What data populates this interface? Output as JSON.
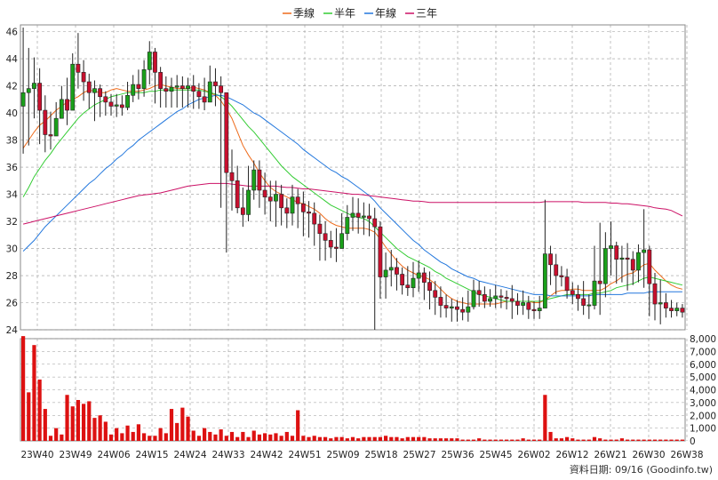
{
  "legend": [
    {
      "label": "季線",
      "color": "#ee6a1a"
    },
    {
      "label": "半年",
      "color": "#33cc33"
    },
    {
      "label": "年線",
      "color": "#2277dd"
    },
    {
      "label": "三年",
      "color": "#cc1166"
    }
  ],
  "footer": "資料日期: 09/16  (Goodinfo.tw)",
  "chart_data": [
    {
      "type": "candlestick",
      "title": "",
      "x_ticks": [
        "23W40",
        "23W49",
        "24W06",
        "24W15",
        "24W24",
        "24W33",
        "24W42",
        "24W51",
        "25W09",
        "25W18",
        "25W27",
        "25W36",
        "25W45",
        "26W02",
        "26W12",
        "26W21",
        "26W30",
        "26W38"
      ],
      "y_ticks": [
        "46",
        "44",
        "42",
        "40",
        "38",
        "36",
        "34",
        "32",
        "30",
        "28",
        "26",
        "24"
      ],
      "ylim": [
        24,
        46.5
      ],
      "grid": true,
      "up_color": "#1aa01a",
      "down_color": "#c8102e",
      "weekly_close": [
        41.5,
        41.8,
        42.2,
        40.2,
        38.4,
        38.3,
        39.6,
        41.0,
        40.2,
        43.6,
        43.0,
        42.3,
        41.5,
        41.8,
        41.2,
        40.8,
        40.5,
        40.6,
        40.4,
        41.3,
        42.1,
        41.8,
        43.2,
        44.5,
        43.0,
        41.8,
        41.6,
        41.9,
        42.0,
        41.8,
        42.0,
        41.6,
        41.2,
        40.8,
        42.3,
        42.0,
        41.5,
        35.6,
        35.0,
        33.0,
        32.5,
        34.3,
        35.8,
        34.3,
        33.8,
        33.5,
        34.0,
        33.0,
        32.6,
        33.8,
        33.3,
        32.7,
        32.6,
        31.8,
        31.1,
        30.6,
        30.1,
        30.0,
        31.1,
        32.3,
        32.6,
        32.3,
        32.4,
        32.2,
        31.6,
        27.9,
        28.4,
        28.6,
        28.1,
        27.3,
        27.1,
        27.8,
        28.2,
        27.5,
        26.9,
        26.4,
        25.8,
        25.6,
        25.7,
        25.5,
        25.3,
        25.7,
        26.9,
        26.6,
        26.1,
        26.3,
        26.5,
        26.4,
        26.3,
        26.1,
        25.8,
        26.0,
        25.5,
        25.4,
        25.6,
        29.6,
        28.8,
        28.0,
        27.9,
        26.9,
        26.6,
        26.3,
        25.8,
        25.8,
        27.6,
        27.4,
        30.0,
        30.2,
        29.2,
        29.3,
        29.2,
        28.4,
        29.7,
        29.9,
        27.4,
        25.9,
        26.0,
        25.6,
        25.4,
        25.6,
        25.3
      ],
      "weekly_high": [
        46.3,
        44.8,
        44.1,
        43.3,
        41.3,
        40.1,
        40.8,
        42.0,
        42.6,
        44.4,
        45.9,
        43.9,
        42.9,
        42.4,
        42.1,
        41.6,
        41.4,
        41.4,
        41.3,
        42.3,
        42.8,
        43.2,
        43.9,
        45.3,
        44.8,
        43.4,
        42.7,
        42.6,
        42.8,
        42.7,
        42.6,
        42.8,
        42.2,
        42.6,
        43.5,
        43.3,
        42.7,
        39.9,
        37.3,
        36.1,
        34.5,
        36.1,
        36.5,
        36.5,
        35.6,
        35.0,
        35.0,
        34.7,
        33.7,
        34.7,
        34.4,
        34.2,
        33.5,
        33.4,
        32.5,
        32.0,
        31.3,
        31.5,
        32.6,
        33.2,
        33.8,
        33.7,
        33.4,
        33.3,
        33.0,
        32.0,
        29.7,
        29.9,
        29.3,
        28.6,
        28.7,
        29.0,
        29.1,
        28.6,
        28.3,
        27.6,
        27.2,
        26.6,
        26.3,
        26.2,
        26.4,
        26.9,
        27.7,
        27.6,
        27.2,
        27.0,
        27.3,
        27.0,
        26.9,
        27.3,
        26.7,
        26.9,
        26.5,
        26.1,
        26.5,
        33.6,
        30.2,
        29.6,
        28.7,
        28.5,
        27.5,
        27.3,
        27.6,
        26.6,
        30.2,
        31.9,
        31.2,
        32.0,
        30.5,
        30.2,
        30.4,
        29.8,
        30.3,
        32.9,
        30.2,
        28.2,
        27.7,
        26.7,
        26.2,
        26.0,
        25.9
      ],
      "weekly_low": [
        37.0,
        37.6,
        39.6,
        37.7,
        37.1,
        37.3,
        38.3,
        39.7,
        39.1,
        40.6,
        41.8,
        40.9,
        40.3,
        39.4,
        39.7,
        39.8,
        39.8,
        39.7,
        39.8,
        40.2,
        40.8,
        41.0,
        41.2,
        42.1,
        40.7,
        40.4,
        40.4,
        40.4,
        40.4,
        40.4,
        40.4,
        40.3,
        40.3,
        40.2,
        40.9,
        40.5,
        33.0,
        29.7,
        32.8,
        32.6,
        31.6,
        32.0,
        33.6,
        33.0,
        32.5,
        32.0,
        31.6,
        31.7,
        31.5,
        31.7,
        31.5,
        30.9,
        30.8,
        30.2,
        29.1,
        29.1,
        29.3,
        29.0,
        30.2,
        30.6,
        31.3,
        31.1,
        31.0,
        30.9,
        24.0,
        26.3,
        26.3,
        27.2,
        26.9,
        26.6,
        26.5,
        26.4,
        26.8,
        26.2,
        25.5,
        25.1,
        24.9,
        24.9,
        24.6,
        24.6,
        24.7,
        24.6,
        25.5,
        25.7,
        25.6,
        25.7,
        25.6,
        25.6,
        25.5,
        24.8,
        25.1,
        25.1,
        24.8,
        24.8,
        24.8,
        25.8,
        27.3,
        26.6,
        27.2,
        26.3,
        25.9,
        25.4,
        25.1,
        24.8,
        25.5,
        25.1,
        26.4,
        28.0,
        27.4,
        27.5,
        26.9,
        27.3,
        27.5,
        27.1,
        25.0,
        24.7,
        24.4,
        24.9,
        24.9,
        25.0,
        24.9
      ],
      "series": [
        {
          "name": "季線",
          "color": "#ee6a1a",
          "values": [
            37.4,
            38.0,
            38.6,
            39.1,
            39.4,
            39.8,
            40.2,
            40.5,
            40.8,
            41.0,
            41.2,
            41.5,
            41.7,
            41.6,
            41.5,
            41.5,
            41.7,
            41.8,
            41.7,
            41.6,
            41.6,
            41.6,
            41.7,
            41.8,
            42.0,
            42.1,
            42.0,
            41.9,
            41.8,
            41.8,
            41.8,
            41.9,
            41.8,
            41.7,
            41.5,
            41.3,
            40.9,
            40.3,
            39.6,
            38.6,
            37.6,
            36.9,
            36.3,
            35.6,
            35.0,
            34.5,
            34.2,
            34.0,
            33.8,
            33.6,
            33.4,
            33.3,
            33.1,
            32.9,
            32.6,
            32.2,
            31.9,
            31.7,
            31.6,
            31.5,
            31.5,
            31.5,
            31.5,
            31.4,
            31.2,
            30.7,
            30.1,
            29.6,
            29.1,
            28.7,
            28.4,
            28.2,
            28.0,
            27.9,
            27.7,
            27.4,
            27.0,
            26.6,
            26.3,
            26.1,
            26.0,
            25.9,
            25.9,
            25.9,
            25.9,
            25.9,
            25.9,
            26.0,
            26.1,
            26.1,
            26.1,
            26.1,
            26.1,
            26.0,
            26.0,
            26.2,
            26.5,
            26.8,
            26.9,
            26.9,
            27.0,
            27.0,
            26.9,
            26.9,
            26.9,
            26.9,
            27.1,
            27.4,
            27.6,
            27.9,
            28.1,
            28.2,
            28.5,
            28.8,
            28.9,
            28.4,
            28.0,
            27.6,
            27.3,
            27.1,
            27.0
          ]
        },
        {
          "name": "半年",
          "color": "#33cc33",
          "values": [
            33.8,
            34.5,
            35.3,
            35.9,
            36.5,
            37.0,
            37.6,
            38.1,
            38.6,
            39.1,
            39.6,
            40.0,
            40.3,
            40.6,
            40.8,
            41.0,
            41.2,
            41.3,
            41.4,
            41.5,
            41.5,
            41.5,
            41.5,
            41.6,
            41.6,
            41.7,
            41.7,
            41.7,
            41.7,
            41.7,
            41.7,
            41.7,
            41.7,
            41.6,
            41.5,
            41.4,
            41.2,
            40.9,
            40.5,
            40.0,
            39.5,
            39.0,
            38.6,
            38.1,
            37.6,
            37.1,
            36.6,
            36.1,
            35.7,
            35.3,
            35.0,
            34.7,
            34.4,
            34.1,
            33.8,
            33.5,
            33.2,
            33.0,
            32.8,
            32.6,
            32.4,
            32.3,
            32.2,
            32.0,
            31.6,
            31.2,
            30.8,
            30.4,
            30.0,
            29.7,
            29.4,
            29.2,
            29.0,
            28.8,
            28.6,
            28.3,
            28.1,
            27.8,
            27.6,
            27.4,
            27.2,
            27.0,
            26.8,
            26.6,
            26.5,
            26.4,
            26.3,
            26.2,
            26.1,
            26.1,
            26.1,
            26.1,
            26.1,
            26.1,
            26.1,
            26.2,
            26.3,
            26.4,
            26.5,
            26.6,
            26.6,
            26.6,
            26.6,
            26.6,
            26.7,
            26.7,
            26.8,
            26.9,
            27.1,
            27.2,
            27.3,
            27.4,
            27.6,
            27.8,
            27.9,
            27.8,
            27.7,
            27.6,
            27.5,
            27.4,
            27.3
          ]
        },
        {
          "name": "年線",
          "color": "#2277dd",
          "values": [
            29.8,
            30.2,
            30.6,
            31.1,
            31.6,
            32.0,
            32.4,
            32.8,
            33.2,
            33.6,
            34.0,
            34.4,
            34.8,
            35.1,
            35.5,
            35.9,
            36.2,
            36.6,
            36.9,
            37.3,
            37.6,
            38.0,
            38.3,
            38.6,
            38.9,
            39.2,
            39.5,
            39.8,
            40.1,
            40.3,
            40.6,
            40.8,
            41.0,
            41.1,
            41.2,
            41.3,
            41.3,
            41.2,
            41.0,
            40.8,
            40.6,
            40.3,
            40.0,
            39.8,
            39.5,
            39.2,
            38.9,
            38.6,
            38.3,
            38.0,
            37.7,
            37.3,
            37.0,
            36.7,
            36.4,
            36.1,
            35.8,
            35.6,
            35.3,
            35.1,
            34.8,
            34.5,
            34.2,
            33.9,
            33.5,
            33.0,
            32.6,
            32.2,
            31.8,
            31.4,
            31.0,
            30.6,
            30.3,
            29.9,
            29.6,
            29.3,
            29.0,
            28.8,
            28.5,
            28.3,
            28.1,
            27.9,
            27.8,
            27.6,
            27.5,
            27.4,
            27.3,
            27.2,
            27.1,
            27.0,
            26.9,
            26.8,
            26.7,
            26.6,
            26.6,
            26.6,
            26.5,
            26.5,
            26.5,
            26.5,
            26.5,
            26.5,
            26.5,
            26.5,
            26.6,
            26.6,
            26.6,
            26.6,
            26.6,
            26.6,
            26.7,
            26.7,
            26.7,
            26.7,
            26.8,
            26.8,
            26.8,
            26.8,
            26.8,
            26.8,
            26.8
          ]
        },
        {
          "name": "三年",
          "color": "#cc1166",
          "values": [
            31.8,
            31.9,
            32.0,
            32.1,
            32.2,
            32.3,
            32.4,
            32.5,
            32.6,
            32.7,
            32.8,
            32.9,
            33.0,
            33.1,
            33.2,
            33.3,
            33.4,
            33.5,
            33.6,
            33.7,
            33.8,
            33.9,
            33.95,
            34.0,
            34.05,
            34.1,
            34.2,
            34.3,
            34.4,
            34.5,
            34.6,
            34.65,
            34.7,
            34.75,
            34.8,
            34.8,
            34.8,
            34.8,
            34.75,
            34.7,
            34.65,
            34.6,
            34.6,
            34.6,
            34.6,
            34.6,
            34.6,
            34.55,
            34.5,
            34.5,
            34.45,
            34.4,
            34.4,
            34.35,
            34.3,
            34.25,
            34.2,
            34.15,
            34.1,
            34.05,
            34.0,
            34.0,
            33.95,
            33.9,
            33.85,
            33.8,
            33.75,
            33.7,
            33.65,
            33.6,
            33.55,
            33.5,
            33.5,
            33.45,
            33.4,
            33.4,
            33.4,
            33.4,
            33.4,
            33.4,
            33.4,
            33.4,
            33.4,
            33.4,
            33.4,
            33.4,
            33.4,
            33.4,
            33.4,
            33.4,
            33.4,
            33.4,
            33.4,
            33.4,
            33.4,
            33.45,
            33.45,
            33.45,
            33.45,
            33.45,
            33.45,
            33.45,
            33.4,
            33.4,
            33.4,
            33.4,
            33.4,
            33.35,
            33.35,
            33.3,
            33.3,
            33.25,
            33.2,
            33.15,
            33.1,
            33.0,
            32.95,
            32.9,
            32.8,
            32.6,
            32.4
          ]
        }
      ]
    },
    {
      "type": "bar",
      "title": "",
      "ylabel": "",
      "y_ticks": [
        "8,000",
        "7,000",
        "6,000",
        "5,000",
        "4,000",
        "3,000",
        "2,000",
        "1,000",
        "0"
      ],
      "ylim": [
        0,
        8000
      ],
      "color": "#dd1111",
      "values": [
        8200,
        3800,
        7500,
        4800,
        2500,
        400,
        1000,
        500,
        3600,
        2700,
        3200,
        2900,
        3100,
        1800,
        2000,
        1500,
        500,
        1000,
        600,
        1200,
        700,
        1300,
        600,
        400,
        400,
        1000,
        600,
        2500,
        1400,
        2600,
        1900,
        800,
        400,
        1000,
        700,
        500,
        900,
        400,
        700,
        300,
        700,
        300,
        800,
        500,
        600,
        500,
        600,
        400,
        700,
        400,
        2400,
        400,
        300,
        400,
        300,
        300,
        200,
        300,
        300,
        200,
        300,
        200,
        300,
        300,
        300,
        300,
        400,
        300,
        300,
        200,
        300,
        300,
        300,
        300,
        200,
        200,
        200,
        200,
        200,
        200,
        100,
        100,
        100,
        200,
        100,
        100,
        100,
        100,
        100,
        100,
        100,
        200,
        100,
        100,
        100,
        3600,
        700,
        200,
        200,
        300,
        200,
        100,
        100,
        100,
        300,
        200,
        100,
        100,
        100,
        200,
        100,
        100,
        100,
        100,
        100,
        100,
        100,
        100,
        100,
        100,
        100
      ]
    }
  ]
}
